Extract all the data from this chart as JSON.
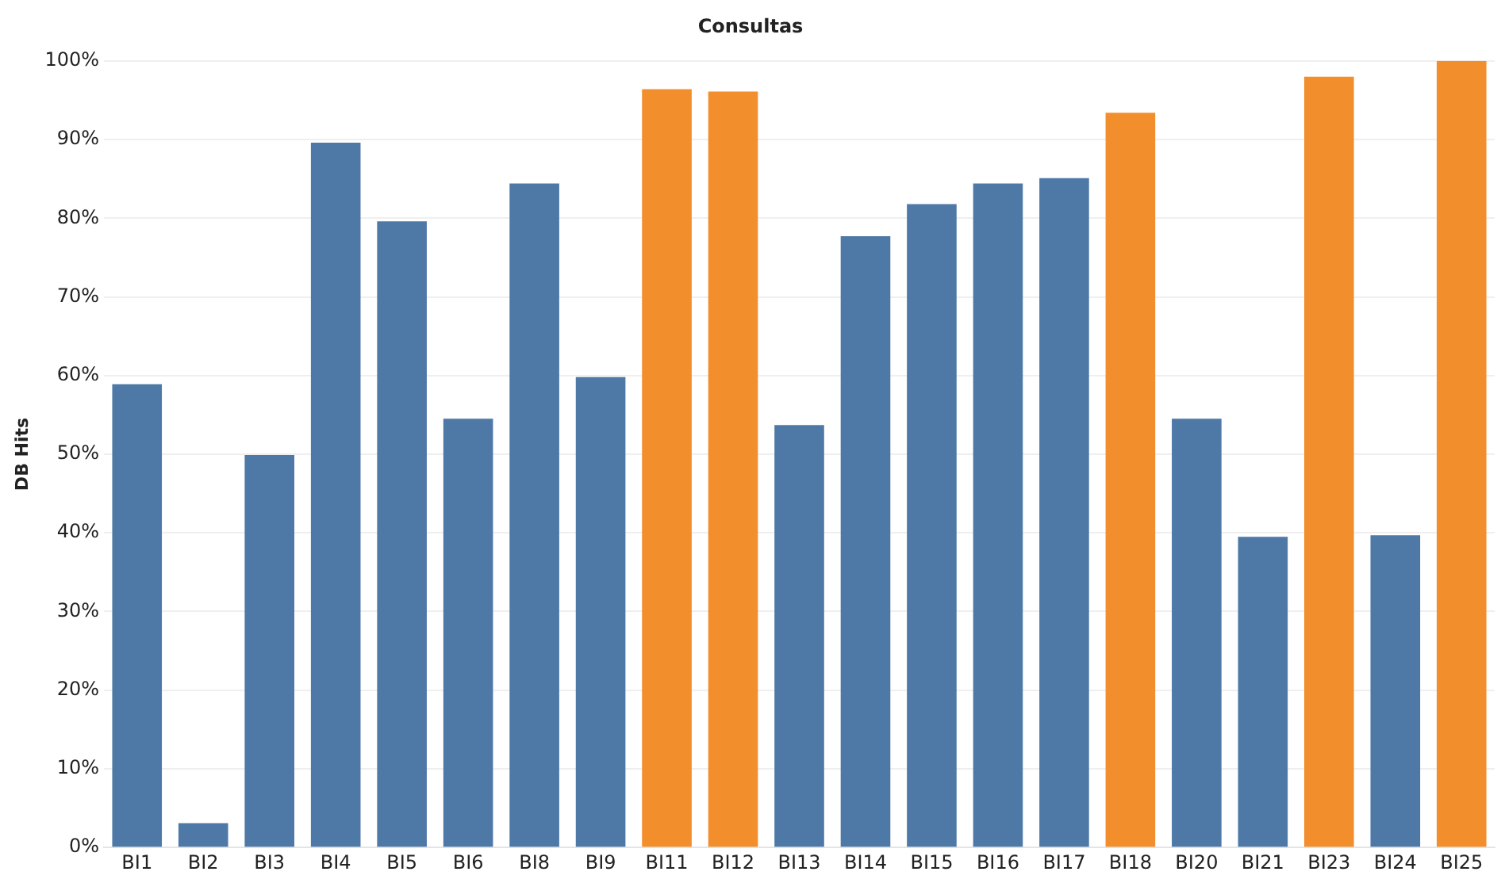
{
  "chart_data": {
    "type": "bar",
    "title": "Consultas",
    "ylabel": "DB Hits",
    "categories": [
      "BI1",
      "BI2",
      "BI3",
      "BI4",
      "BI5",
      "BI6",
      "BI8",
      "BI9",
      "BI11",
      "BI12",
      "BI13",
      "BI14",
      "BI15",
      "BI16",
      "BI17",
      "BI18",
      "BI20",
      "BI21",
      "BI23",
      "BI24",
      "BI25"
    ],
    "values": [
      58.9,
      3.1,
      49.9,
      89.6,
      79.6,
      54.5,
      84.4,
      59.8,
      96.4,
      96.1,
      53.7,
      77.7,
      81.8,
      84.4,
      85.1,
      93.4,
      54.5,
      39.5,
      98.0,
      39.7,
      100
    ],
    "colors": [
      "#4e79a7",
      "#4e79a7",
      "#4e79a7",
      "#4e79a7",
      "#4e79a7",
      "#4e79a7",
      "#4e79a7",
      "#4e79a7",
      "#f28e2b",
      "#f28e2b",
      "#4e79a7",
      "#4e79a7",
      "#4e79a7",
      "#4e79a7",
      "#4e79a7",
      "#f28e2b",
      "#4e79a7",
      "#4e79a7",
      "#f28e2b",
      "#4e79a7",
      "#f28e2b"
    ],
    "ylim": [
      0,
      100
    ],
    "yticks": [
      {
        "value": 0,
        "label": "0%"
      },
      {
        "value": 10,
        "label": "10%"
      },
      {
        "value": 20,
        "label": "20%"
      },
      {
        "value": 30,
        "label": "30%"
      },
      {
        "value": 40,
        "label": "40%"
      },
      {
        "value": 50,
        "label": "50%"
      },
      {
        "value": 60,
        "label": "60%"
      },
      {
        "value": 70,
        "label": "70%"
      },
      {
        "value": 80,
        "label": "80%"
      },
      {
        "value": 90,
        "label": "90%"
      },
      {
        "value": 100,
        "label": "100%"
      }
    ],
    "grid": "y"
  }
}
